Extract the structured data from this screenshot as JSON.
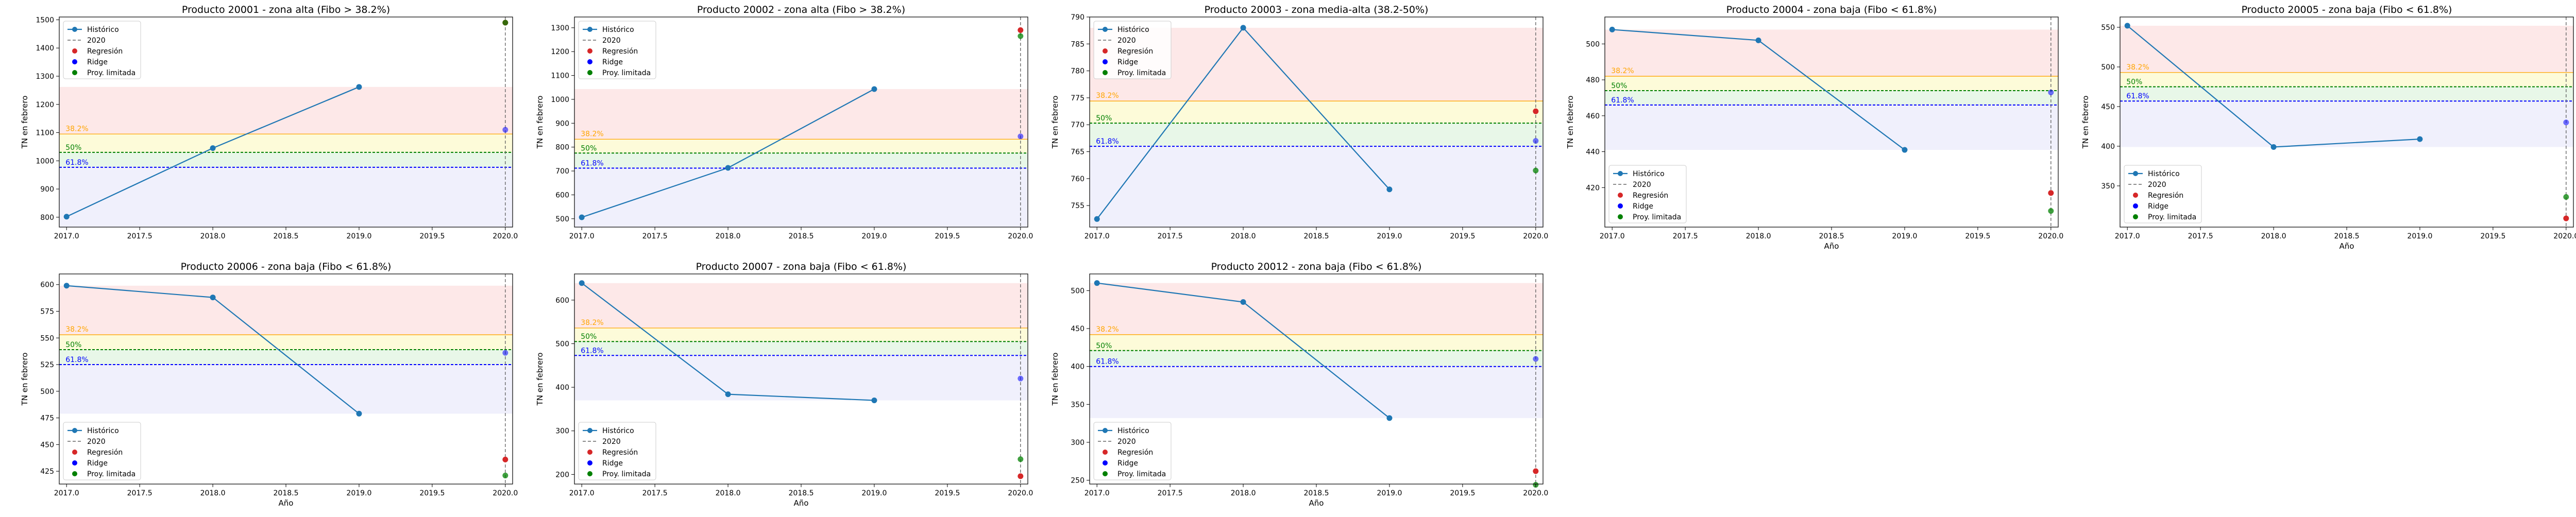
{
  "colors": {
    "hist": "#1f77b4",
    "regresion": "#d62728",
    "ridge": "#0000ff",
    "proy": "#008000",
    "fibo382": "#ffa500",
    "fibo50": "#008000",
    "fibo618": "#0000ff",
    "zone_high": "#fde8e8",
    "zone_mid": "#fdfbd9",
    "zone_lowmid": "#e8f7e8",
    "zone_low": "#f0f0fc",
    "vline": "#666666"
  },
  "legend": {
    "hist": "Histórico",
    "vline": "2020",
    "regresion": "Regresión",
    "ridge": "Ridge",
    "proy": "Proy. limitada"
  },
  "fibo_labels": {
    "f382": "38.2%",
    "f50": "50%",
    "f618": "61.8%"
  },
  "chart_data": [
    {
      "type": "line",
      "title": "Producto 20001 - zona alta (Fibo > 38.2%)",
      "xlabel": "",
      "ylabel": "TN en febrero",
      "x": [
        2017,
        2018,
        2019
      ],
      "values": [
        802,
        1045,
        1262
      ],
      "xlim": [
        2016.95,
        2020.05
      ],
      "ylim": [
        765,
        1510
      ],
      "yticks": [
        800,
        900,
        1000,
        1100,
        1200,
        1300,
        1400,
        1500
      ],
      "xticks": [
        "2017.0",
        "2017.5",
        "2018.0",
        "2018.5",
        "2019.0",
        "2019.5",
        "2020.0"
      ],
      "predictions_2020": {
        "regresion": 1490,
        "ridge": 1110,
        "proy": 1490
      },
      "fibo": {
        "f382": 1095,
        "f50": 1030,
        "f618": 977
      },
      "zones": [
        1262,
        1095,
        1030,
        977,
        765
      ],
      "legend_position": "upper-left"
    },
    {
      "type": "line",
      "title": "Producto 20002 - zona alta (Fibo > 38.2%)",
      "xlabel": "",
      "ylabel": "TN en febrero",
      "x": [
        2017,
        2018,
        2019
      ],
      "values": [
        506,
        713,
        1043
      ],
      "xlim": [
        2016.95,
        2020.05
      ],
      "ylim": [
        465,
        1345
      ],
      "yticks": [
        500,
        600,
        700,
        800,
        900,
        1000,
        1100,
        1200,
        1300
      ],
      "xticks": [
        "2017.0",
        "2017.5",
        "2018.0",
        "2018.5",
        "2019.0",
        "2019.5",
        "2020.0"
      ],
      "predictions_2020": {
        "regresion": 1290,
        "ridge": 845,
        "proy": 1265
      },
      "fibo": {
        "f382": 833,
        "f50": 775,
        "f618": 712
      },
      "zones": [
        1043,
        833,
        775,
        712,
        465
      ],
      "legend_position": "upper-left"
    },
    {
      "type": "line",
      "title": "Producto 20003 - zona media-alta (38.2-50%)",
      "xlabel": "",
      "ylabel": "TN en febrero",
      "x": [
        2017,
        2018,
        2019
      ],
      "values": [
        752.5,
        788,
        758
      ],
      "xlim": [
        2016.95,
        2020.05
      ],
      "ylim": [
        751,
        790
      ],
      "yticks": [
        755,
        760,
        765,
        770,
        775,
        780,
        785,
        790
      ],
      "xticks": [
        "2017.0",
        "2017.5",
        "2018.0",
        "2018.5",
        "2019.0",
        "2019.5",
        "2020.0"
      ],
      "predictions_2020": {
        "regresion": 772.5,
        "ridge": 767,
        "proy": 761.5
      },
      "fibo": {
        "f382": 774.4,
        "f50": 770.3,
        "f618": 766
      },
      "zones": [
        788,
        774.4,
        770.3,
        766,
        751
      ],
      "legend_position": "upper-left"
    },
    {
      "type": "line",
      "title": "Producto 20004 - zona baja (Fibo < 61.8%)",
      "xlabel": "Año",
      "ylabel": "TN en febrero",
      "x": [
        2017,
        2018,
        2019
      ],
      "values": [
        508,
        502,
        441
      ],
      "xlim": [
        2016.95,
        2020.05
      ],
      "ylim": [
        398,
        515
      ],
      "yticks": [
        420,
        440,
        460,
        480,
        500
      ],
      "xticks": [
        "2017.0",
        "2017.5",
        "2018.0",
        "2018.5",
        "2019.0",
        "2019.5",
        "2020.0"
      ],
      "predictions_2020": {
        "regresion": 417,
        "ridge": 473,
        "proy": 407
      },
      "fibo": {
        "f382": 482,
        "f50": 474,
        "f618": 466
      },
      "zones": [
        508,
        482,
        474,
        466,
        441
      ],
      "legend_position": "lower-left"
    },
    {
      "type": "line",
      "title": "Producto 20005 - zona baja (Fibo < 61.8%)",
      "xlabel": "Año",
      "ylabel": "TN en febrero",
      "x": [
        2017,
        2018,
        2019
      ],
      "values": [
        552,
        399,
        409
      ],
      "xlim": [
        2016.95,
        2020.05
      ],
      "ylim": [
        298,
        563
      ],
      "yticks": [
        350,
        400,
        450,
        500,
        550
      ],
      "xticks": [
        "2017.0",
        "2017.5",
        "2018.0",
        "2018.5",
        "2019.0",
        "2019.5",
        "2020.0"
      ],
      "predictions_2020": {
        "regresion": 309,
        "ridge": 430,
        "proy": 336
      },
      "fibo": {
        "f382": 493,
        "f50": 475,
        "f618": 457
      },
      "zones": [
        552,
        493,
        475,
        457,
        399
      ],
      "legend_position": "lower-left"
    },
    {
      "type": "line",
      "title": "Producto 20006 - zona baja (Fibo < 61.8%)",
      "xlabel": "Año",
      "ylabel": "TN en febrero",
      "x": [
        2017,
        2018,
        2019
      ],
      "values": [
        599,
        588,
        479
      ],
      "xlim": [
        2016.95,
        2020.05
      ],
      "ylim": [
        413,
        610
      ],
      "yticks": [
        425,
        450,
        475,
        500,
        525,
        550,
        575,
        600
      ],
      "xticks": [
        "2017.0",
        "2017.5",
        "2018.0",
        "2018.5",
        "2019.0",
        "2019.5",
        "2020.0"
      ],
      "predictions_2020": {
        "regresion": 436,
        "ridge": 536,
        "proy": 421
      },
      "fibo": {
        "f382": 553,
        "f50": 539,
        "f618": 525
      },
      "zones": [
        599,
        553,
        539,
        525,
        479
      ],
      "legend_position": "lower-left"
    },
    {
      "type": "line",
      "title": "Producto 20007 - zona baja (Fibo < 61.8%)",
      "xlabel": "Año",
      "ylabel": "TN en febrero",
      "x": [
        2017,
        2018,
        2019
      ],
      "values": [
        639,
        384,
        370
      ],
      "xlim": [
        2016.95,
        2020.05
      ],
      "ylim": [
        178,
        660
      ],
      "yticks": [
        200,
        300,
        400,
        500,
        600
      ],
      "xticks": [
        "2017.0",
        "2017.5",
        "2018.0",
        "2018.5",
        "2019.0",
        "2019.5",
        "2020.0"
      ],
      "predictions_2020": {
        "regresion": 196,
        "ridge": 420,
        "proy": 235
      },
      "fibo": {
        "f382": 536,
        "f50": 505,
        "f618": 473
      },
      "zones": [
        639,
        536,
        505,
        473,
        370
      ],
      "legend_position": "lower-left"
    },
    {
      "type": "line",
      "title": "Producto 20012 - zona baja (Fibo < 61.8%)",
      "xlabel": "Año",
      "ylabel": "TN en febrero",
      "x": [
        2017,
        2018,
        2019
      ],
      "values": [
        510,
        485,
        332
      ],
      "xlim": [
        2016.95,
        2020.05
      ],
      "ylim": [
        245,
        522
      ],
      "yticks": [
        250,
        300,
        350,
        400,
        450,
        500
      ],
      "xticks": [
        "2017.0",
        "2017.5",
        "2018.0",
        "2018.5",
        "2019.0",
        "2019.5",
        "2020.0"
      ],
      "predictions_2020": {
        "regresion": 262,
        "ridge": 410,
        "proy": 244
      },
      "fibo": {
        "f382": 442,
        "f50": 421,
        "f618": 400
      },
      "zones": [
        510,
        442,
        421,
        400,
        332
      ],
      "legend_position": "lower-left"
    }
  ]
}
